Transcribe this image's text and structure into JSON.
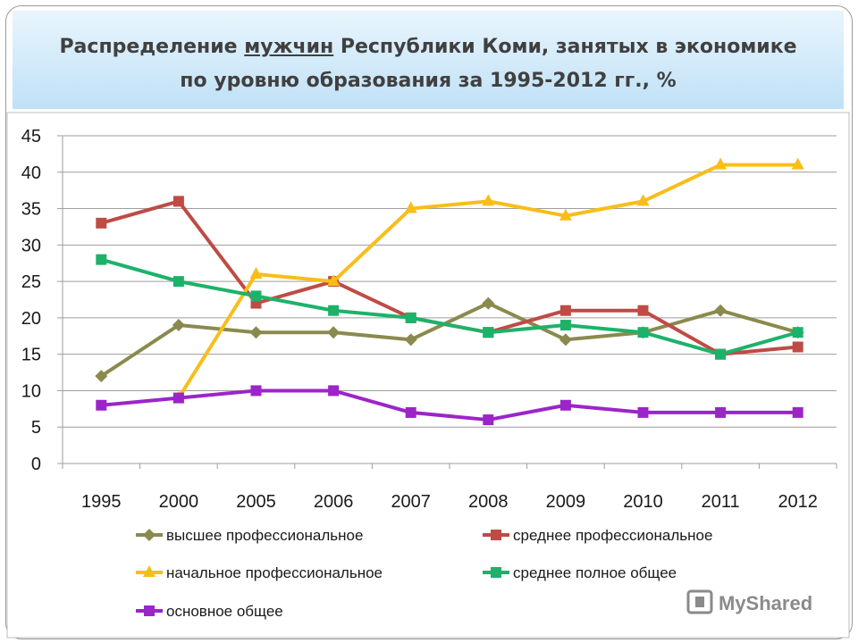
{
  "title": {
    "line1_pre": "Распределение ",
    "line1_underlined": "мужчин",
    "line1_post": " Республики Коми, занятых в экономике",
    "line2": "по уровню образования за 1995-2012 гг., %"
  },
  "watermark": "MyShared",
  "chart_data": {
    "type": "line",
    "categories": [
      "1995",
      "2000",
      "2005",
      "2006",
      "2007",
      "2008",
      "2009",
      "2010",
      "2011",
      "2012"
    ],
    "ylim": [
      0,
      45
    ],
    "yticks": [
      0,
      5,
      10,
      15,
      20,
      25,
      30,
      35,
      40,
      45
    ],
    "grid": true,
    "legend_position": "bottom",
    "series": [
      {
        "name": "высшее профессиональное",
        "color": "#8a8a4f",
        "marker": "diamond",
        "values": [
          12,
          19,
          18,
          18,
          17,
          22,
          17,
          18,
          21,
          18
        ]
      },
      {
        "name": "среднее профессиональное",
        "color": "#bf4b45",
        "marker": "square",
        "values": [
          33,
          36,
          22,
          25,
          20,
          18,
          21,
          21,
          15,
          16
        ]
      },
      {
        "name": "начальное профессиональное",
        "color": "#f9bd1a",
        "marker": "triangle",
        "values": [
          null,
          9,
          26,
          25,
          35,
          36,
          34,
          36,
          41,
          41
        ]
      },
      {
        "name": "среднее полное общее",
        "color": "#1db26a",
        "marker": "square",
        "values": [
          28,
          25,
          23,
          21,
          20,
          18,
          19,
          18,
          15,
          18
        ]
      },
      {
        "name": "основное общее",
        "color": "#9b25c9",
        "marker": "square",
        "values": [
          8,
          9,
          10,
          10,
          7,
          6,
          8,
          7,
          7,
          7
        ]
      }
    ]
  }
}
